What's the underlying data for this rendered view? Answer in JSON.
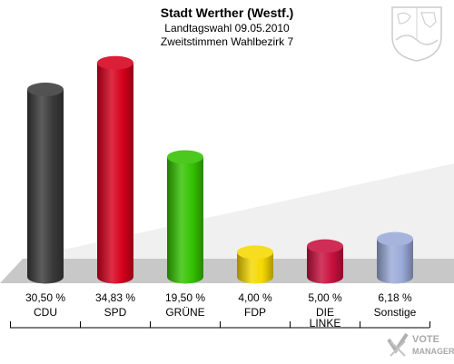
{
  "header": {
    "title": "Stadt Werther (Westf.)",
    "subtitle1": "Landtagswahl 09.05.2010",
    "subtitle2": "Zweitstimmen Wahlbezirk 7"
  },
  "chart_data": {
    "type": "bar",
    "title": "Stadt Werther (Westf.)",
    "categories": [
      "CDU",
      "SPD",
      "GRÜNE",
      "FDP",
      "DIE LINKE",
      "Sonstige"
    ],
    "category_lines": [
      [
        "CDU"
      ],
      [
        "SPD"
      ],
      [
        "GRÜNE"
      ],
      [
        "FDP"
      ],
      [
        "DIE",
        "LINKE"
      ],
      [
        "Sonstige"
      ]
    ],
    "values": [
      30.5,
      34.83,
      19.5,
      4.0,
      5.0,
      6.18
    ],
    "value_labels": [
      "30,50 %",
      "34,83 %",
      "19,50 %",
      "4,00 %",
      "5,00 %",
      "6,18 %"
    ],
    "colors": [
      "#3a3a3a",
      "#d5001c",
      "#33c200",
      "#f5d800",
      "#c8103e",
      "#9aaad8"
    ],
    "ylim": [
      0,
      35
    ],
    "xlabel": "",
    "ylabel": ""
  },
  "icons": {
    "coat_of_arms": "coat-of-arms-icon",
    "watermark": "votemanager-logo-icon"
  },
  "watermark": {
    "line1": "VOTE",
    "line2": "MANAGER"
  }
}
